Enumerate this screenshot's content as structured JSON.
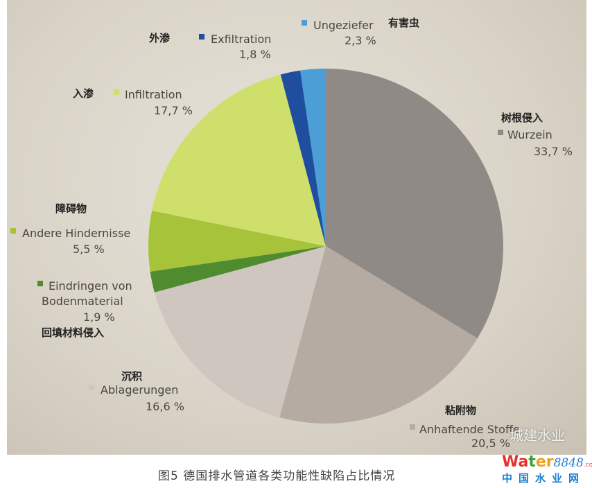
{
  "caption": "图5 德国排水管道各类功能性缺陷占比情况",
  "watermark": "城建水业",
  "logo": {
    "brand": "Water",
    "number": "8848",
    "tld": ".com",
    "subtitle": "中国水业网"
  },
  "chart_data": {
    "type": "pie",
    "start": "top",
    "direction": "clockwise",
    "slices": [
      {
        "name": "Wurzein",
        "cn": "树根侵入",
        "value": 33.7,
        "label": "33,7 %",
        "color": "#8f8a85"
      },
      {
        "name": "Anhaftende Stoffe",
        "cn": "粘附物",
        "value": 20.5,
        "label": "20,5 %",
        "color": "#b6aba2"
      },
      {
        "name": "Ablagerungen",
        "cn": "沉积",
        "value": 16.6,
        "label": "16,6 %",
        "color": "#cec6bf"
      },
      {
        "name": "Eindringen von Bodenmaterial",
        "cn": "回填材料侵入",
        "value": 1.9,
        "label": "1,9 %",
        "color": "#4f8b2f"
      },
      {
        "name": "Andere Hindernisse",
        "cn": "障碍物",
        "value": 5.5,
        "label": "5,5 %",
        "color": "#a6c33a"
      },
      {
        "name": "Infiltration",
        "cn": "入渗",
        "value": 17.7,
        "label": "17,7 %",
        "color": "#cfdf6c"
      },
      {
        "name": "Exfiltration",
        "cn": "外渗",
        "value": 1.8,
        "label": "1,8 %",
        "color": "#1f4e9e"
      },
      {
        "name": "Ungeziefer",
        "cn": "有害虫",
        "value": 2.3,
        "label": "2,3 %",
        "color": "#4b9fd6"
      }
    ]
  }
}
